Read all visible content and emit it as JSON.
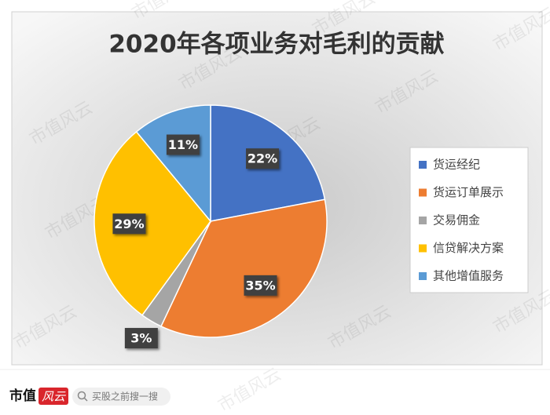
{
  "chart_data": {
    "type": "pie",
    "title": "2020年各项业务对毛利的贡献",
    "categories": [
      "货运经纪",
      "货运订单展示",
      "交易佣金",
      "信贷解决方案",
      "其他增值服务"
    ],
    "values": [
      22,
      35,
      3,
      29,
      11
    ],
    "value_labels": [
      "22%",
      "35%",
      "3%",
      "29%",
      "11%"
    ],
    "colors": [
      "#4472c4",
      "#ed7d31",
      "#a5a5a5",
      "#ffc000",
      "#5b9bd5"
    ],
    "legend": "right"
  },
  "watermark": "市值风云",
  "footer": {
    "brand": "市值",
    "brand_accent": "风云",
    "search_placeholder": "买股之前搜一搜"
  }
}
